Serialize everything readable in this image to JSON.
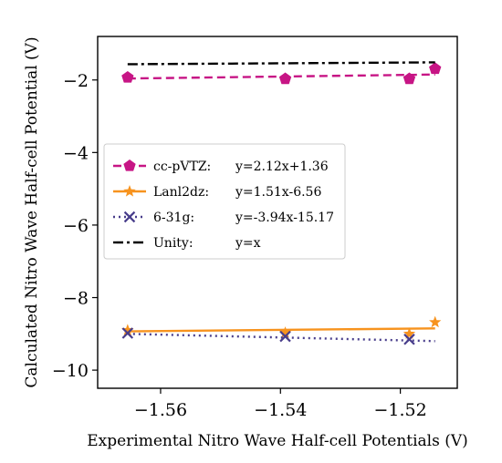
{
  "chart_data": {
    "type": "line",
    "xlabel": "Experimental Nitro Wave Half-cell Potentials (V)",
    "ylabel": "Calculated Nitro Wave Half-cell Potential (V)",
    "xlim": [
      -1.5705,
      -1.5105
    ],
    "ylim": [
      -10.5,
      -0.8
    ],
    "x_ticks": [
      -1.56,
      -1.54,
      -1.52
    ],
    "x_tick_labels": [
      "−1.56",
      "−1.54",
      "−1.52"
    ],
    "y_ticks": [
      -2,
      -4,
      -6,
      -8,
      -10
    ],
    "y_tick_labels": [
      "−2",
      "−4",
      "−6",
      "−8",
      "−10"
    ],
    "grid": false,
    "legend_position": "center-left",
    "series": [
      {
        "name": "cc-pVTZ: y=2.12x+1.36",
        "legend_label": "cc-pVTZ:",
        "legend_formula": "y=2.12x+1.36",
        "color": "#c71585",
        "marker": "pentagon",
        "line_style": "dashed",
        "points_x": [
          -1.5655,
          -1.5392,
          -1.5185,
          -1.5142
        ],
        "points_y": [
          -1.93,
          -1.97,
          -1.97,
          -1.69
        ],
        "fit_x": [
          -1.5655,
          -1.5142
        ],
        "fit_y": [
          -1.96,
          -1.85
        ]
      },
      {
        "name": "Lanl2dz: y=1.51x-6.56",
        "legend_label": "Lanl2dz:",
        "legend_formula": "y=1.51x-6.56",
        "color": "#f7931e",
        "marker": "star",
        "line_style": "solid",
        "points_x": [
          -1.5655,
          -1.5392,
          -1.5185,
          -1.5142
        ],
        "points_y": [
          -8.9,
          -8.97,
          -9.0,
          -8.68
        ],
        "fit_x": [
          -1.5655,
          -1.5142
        ],
        "fit_y": [
          -8.93,
          -8.85
        ]
      },
      {
        "name": "6-31g: y=-3.94x-15.17",
        "legend_label": "6-31g:",
        "legend_formula": "y=-3.94x-15.17",
        "color": "#483d8b",
        "marker": "x",
        "line_style": "dotted",
        "points_x": [
          -1.5655,
          -1.5392,
          -1.5185
        ],
        "points_y": [
          -8.98,
          -9.07,
          -9.15
        ],
        "fit_x": [
          -1.5655,
          -1.5142
        ],
        "fit_y": [
          -9.0,
          -9.2
        ]
      },
      {
        "name": "Unity: y=x",
        "legend_label": "Unity:",
        "legend_formula": "y=x",
        "color": "#000000",
        "marker": "none",
        "line_style": "dashdot",
        "points_x": [],
        "points_y": [],
        "fit_x": [
          -1.5655,
          -1.5142
        ],
        "fit_y": [
          -1.5655,
          -1.5142
        ]
      }
    ]
  }
}
